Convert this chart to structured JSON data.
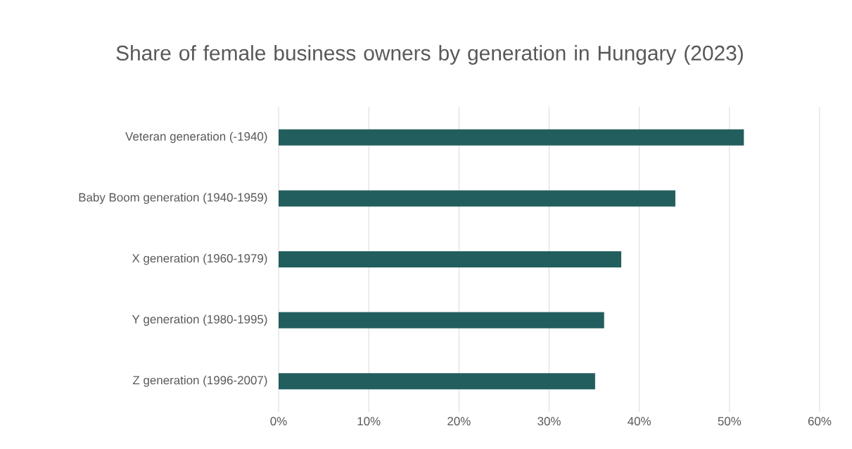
{
  "chart_data": {
    "type": "bar",
    "orientation": "horizontal",
    "title": "Share of female business owners by generation in Hungary (2023)",
    "categories": [
      "Veteran generation (-1940)",
      "Baby Boom generation (1940-1959)",
      "X generation (1960-1979)",
      "Y generation (1980-1995)",
      "Z generation (1996-2007)"
    ],
    "values": [
      51.6,
      44.0,
      38.0,
      36.1,
      35.1
    ],
    "color": "#235e5e",
    "xlim": [
      0,
      60
    ],
    "xticks": [
      {
        "value": 0,
        "label": "0%"
      },
      {
        "value": 10,
        "label": "10%"
      },
      {
        "value": 20,
        "label": "20%"
      },
      {
        "value": 30,
        "label": "30%"
      },
      {
        "value": 40,
        "label": "40%"
      },
      {
        "value": 50,
        "label": "50%"
      },
      {
        "value": 60,
        "label": "60%"
      }
    ],
    "grid": "x"
  }
}
